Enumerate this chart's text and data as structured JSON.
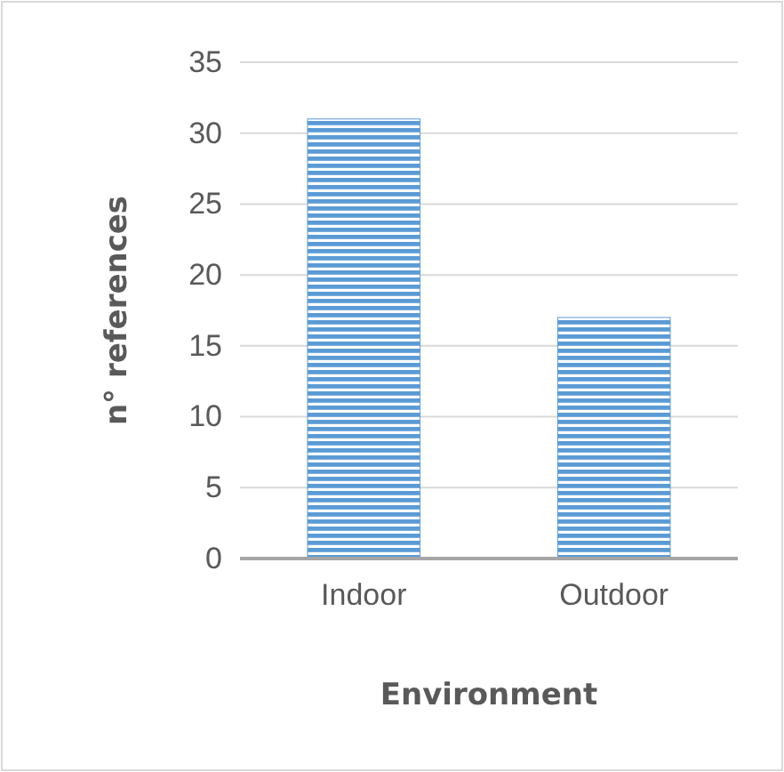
{
  "chart_data": {
    "type": "bar",
    "xlabel": "Environment",
    "ylabel": "n° references",
    "categories": [
      "Indoor",
      "Outdoor"
    ],
    "values": [
      31,
      17
    ],
    "color": "#5b9bd5",
    "ylim": [
      0,
      35
    ],
    "yticks": [
      0,
      5,
      10,
      15,
      20,
      25,
      30,
      35
    ],
    "grid": "y"
  }
}
